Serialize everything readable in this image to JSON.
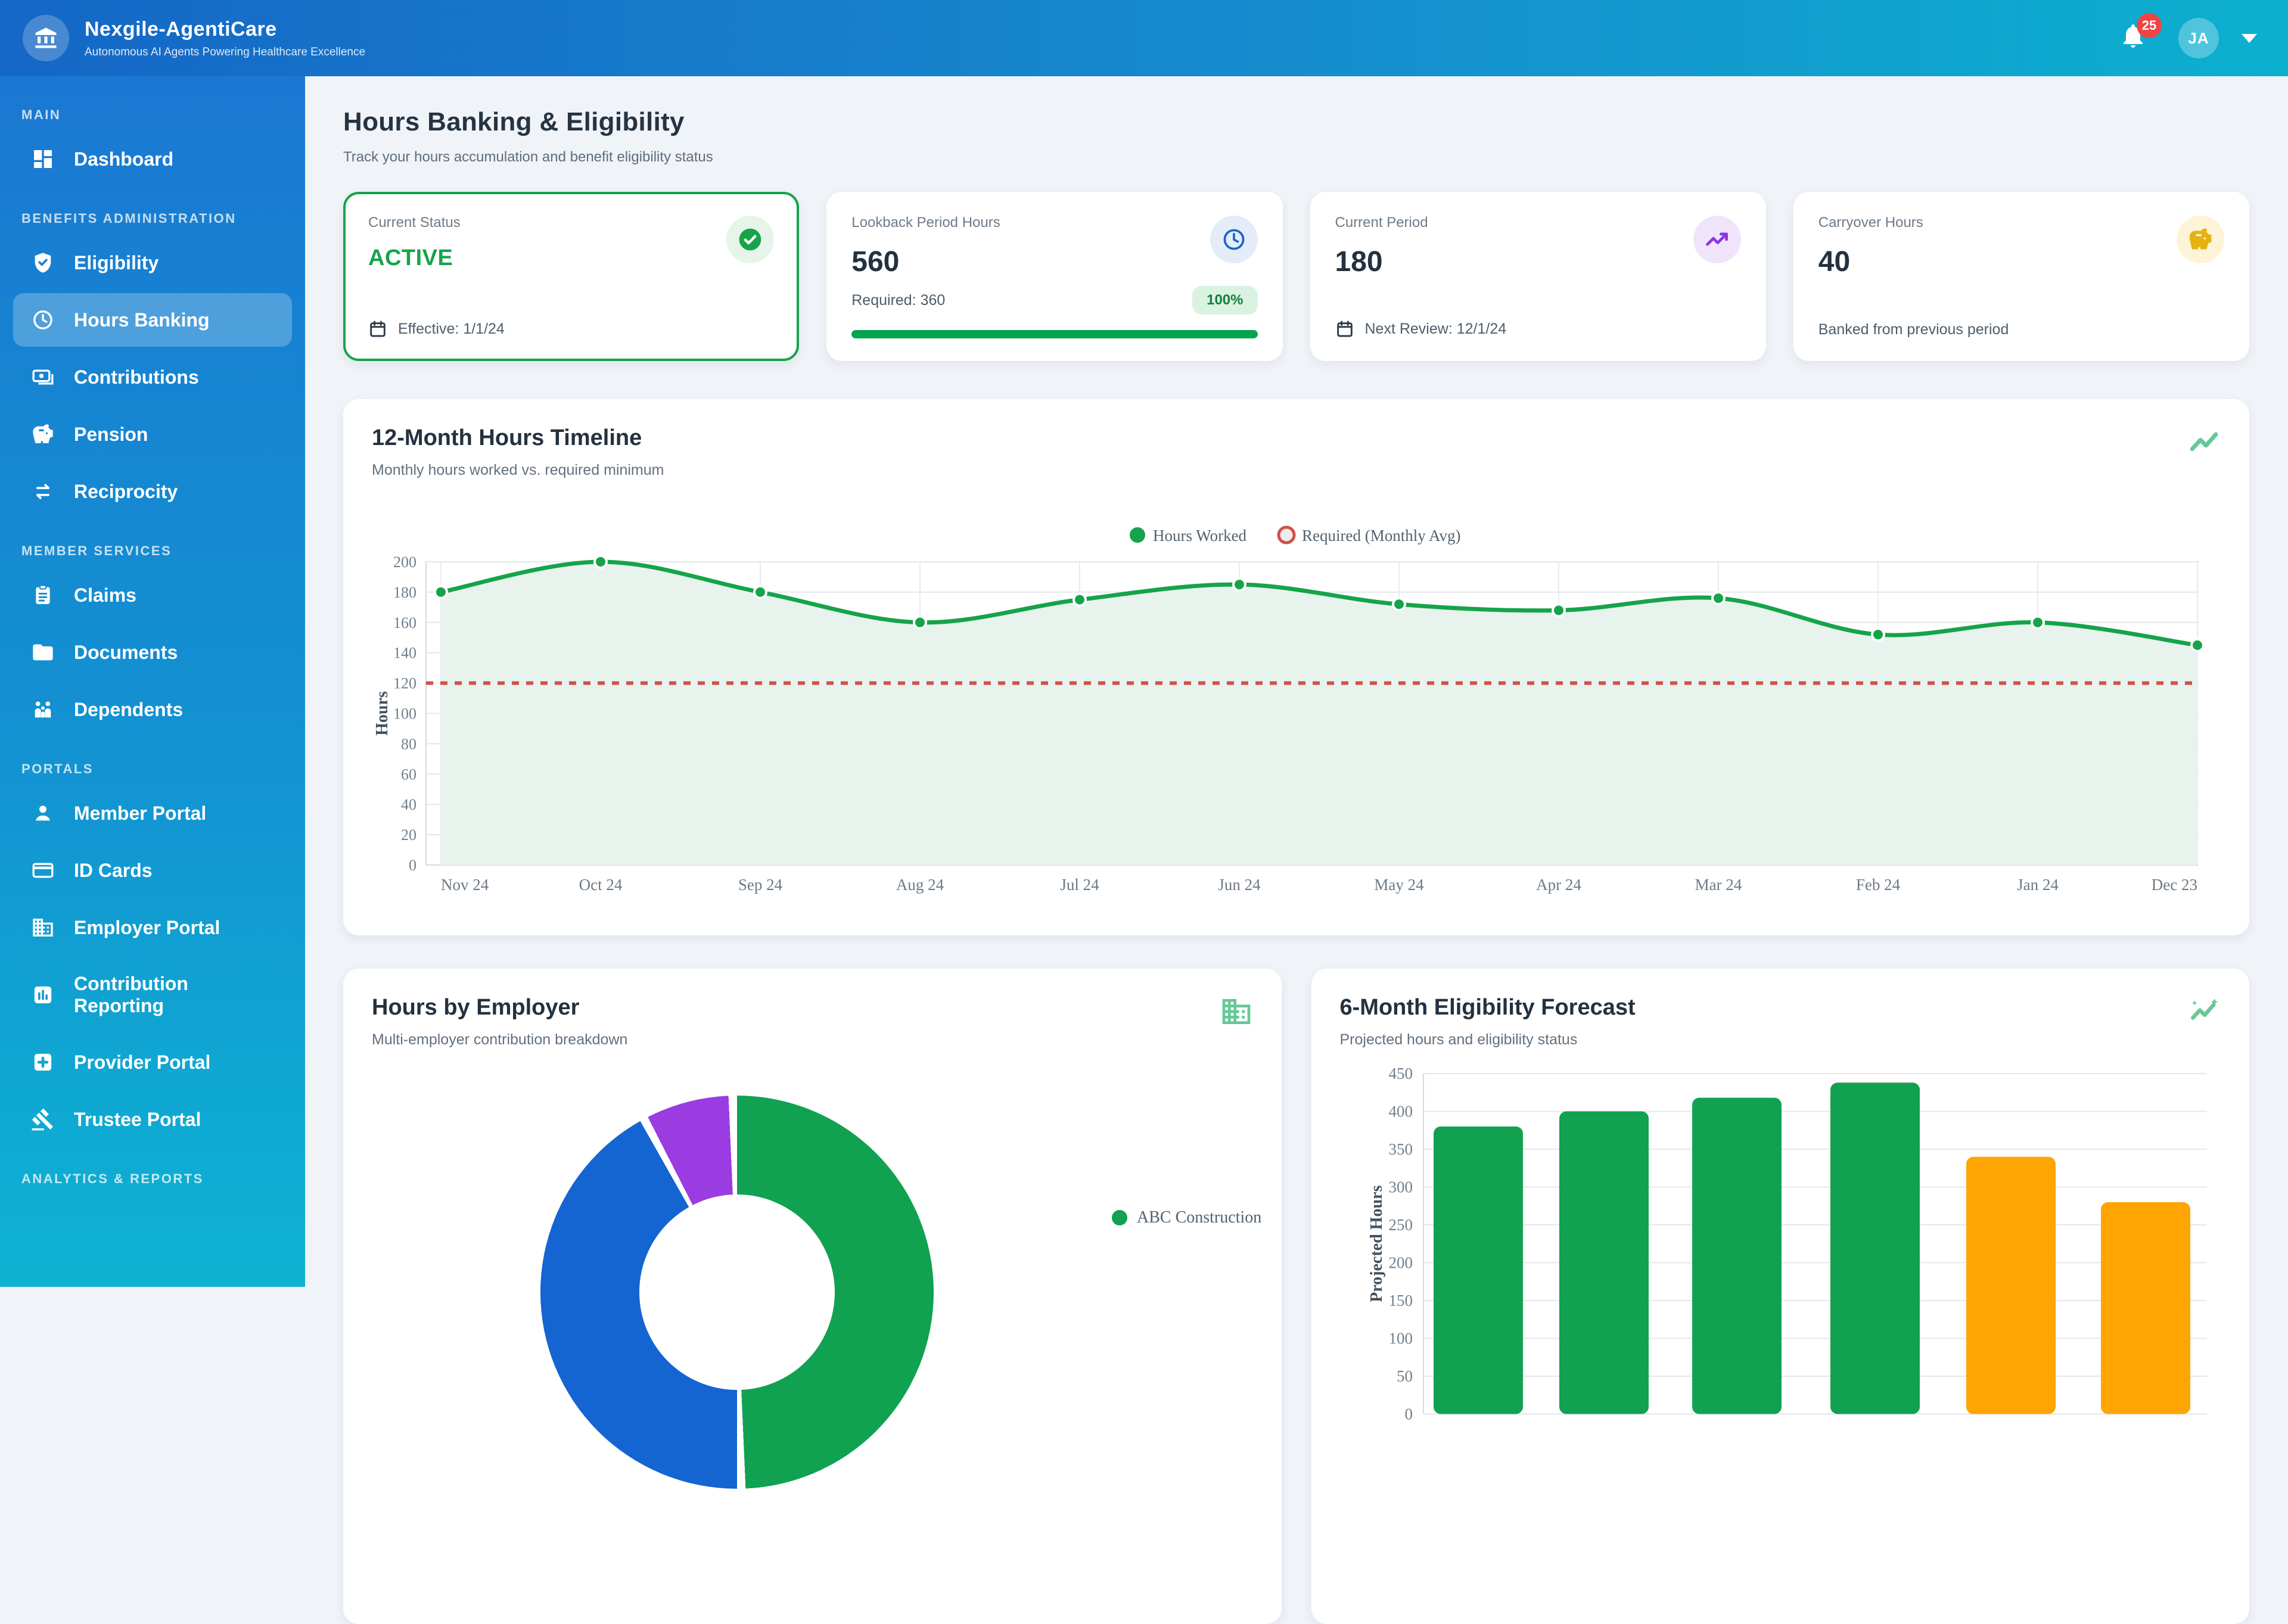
{
  "header": {
    "brand": "Nexgile-AgentiCare",
    "tagline": "Autonomous AI Agents Powering Healthcare Excellence",
    "notification_count": "25",
    "avatar_initials": "JA"
  },
  "sidebar": {
    "sections": [
      {
        "label": "MAIN",
        "items": [
          {
            "label": "Dashboard",
            "icon": "dashboard-icon",
            "active": false
          }
        ]
      },
      {
        "label": "BENEFITS ADMINISTRATION",
        "items": [
          {
            "label": "Eligibility",
            "icon": "shield-check-icon",
            "active": false
          },
          {
            "label": "Hours Banking",
            "icon": "clock-icon",
            "active": true
          },
          {
            "label": "Contributions",
            "icon": "payments-icon",
            "active": false
          },
          {
            "label": "Pension",
            "icon": "piggy-bank-icon",
            "active": false
          },
          {
            "label": "Reciprocity",
            "icon": "swap-arrows-icon",
            "active": false
          }
        ]
      },
      {
        "label": "MEMBER SERVICES",
        "items": [
          {
            "label": "Claims",
            "icon": "clipboard-icon",
            "active": false
          },
          {
            "label": "Documents",
            "icon": "folder-icon",
            "active": false
          },
          {
            "label": "Dependents",
            "icon": "family-icon",
            "active": false
          }
        ]
      },
      {
        "label": "PORTALS",
        "items": [
          {
            "label": "Member Portal",
            "icon": "person-icon",
            "active": false
          },
          {
            "label": "ID Cards",
            "icon": "id-card-icon",
            "active": false
          },
          {
            "label": "Employer Portal",
            "icon": "building-icon",
            "active": false
          },
          {
            "label": "Contribution Reporting",
            "icon": "bar-chart-icon",
            "active": false
          },
          {
            "label": "Provider Portal",
            "icon": "medical-cross-icon",
            "active": false
          },
          {
            "label": "Trustee Portal",
            "icon": "gavel-icon",
            "active": false
          }
        ]
      },
      {
        "label": "ANALYTICS & REPORTS",
        "items": []
      }
    ]
  },
  "page": {
    "title": "Hours Banking & Eligibility",
    "subtitle": "Track your hours accumulation and benefit eligibility status"
  },
  "stats": [
    {
      "label": "Current Status",
      "value": "ACTIVE",
      "footer": "Effective: 1/1/24"
    },
    {
      "label": "Lookback Period Hours",
      "value": "560",
      "footer": "Required: 360",
      "badge": "100%"
    },
    {
      "label": "Current Period",
      "value": "180",
      "footer": "Next Review: 12/1/24"
    },
    {
      "label": "Carryover Hours",
      "value": "40",
      "footer": "Banked from previous period"
    }
  ],
  "chart_data": [
    {
      "id": "timeline",
      "type": "line",
      "title": "12-Month Hours Timeline",
      "subtitle": "Monthly hours worked vs. required minimum",
      "ylabel": "Hours",
      "ylim": [
        0,
        200
      ],
      "ytick_step": 20,
      "grid": true,
      "legend_position": "top-center",
      "categories": [
        "Nov 24",
        "Oct 24",
        "Sep 24",
        "Aug 24",
        "Jul 24",
        "Jun 24",
        "May 24",
        "Apr 24",
        "Mar 24",
        "Feb 24",
        "Jan 24",
        "Dec 23"
      ],
      "series": [
        {
          "name": "Hours Worked",
          "type": "line",
          "values": [
            180,
            200,
            180,
            160,
            175,
            185,
            172,
            168,
            176,
            152,
            160,
            145
          ],
          "color": "#16a34a"
        },
        {
          "name": "Required (Monthly Avg)",
          "type": "dashed-reference",
          "value": 120,
          "color": "#d0514b"
        }
      ]
    },
    {
      "id": "employer",
      "type": "pie",
      "title": "Hours by Employer",
      "subtitle": "Multi-employer contribution breakdown",
      "segments": [
        {
          "label": "ABC Construction",
          "percent": 50,
          "color": "#10a251"
        },
        {
          "label": "",
          "percent": 42.5,
          "color": "#1464d2"
        },
        {
          "label": "",
          "percent": 7.5,
          "color": "#9a3ce2"
        }
      ],
      "visible_legend": [
        "ABC Construction"
      ]
    },
    {
      "id": "forecast",
      "type": "bar",
      "title": "6-Month Eligibility Forecast",
      "subtitle": "Projected hours and eligibility status",
      "ylabel": "Projected Hours",
      "ylim": [
        0,
        450
      ],
      "ytick_step": 50,
      "grid": true,
      "values": [
        380,
        400,
        418,
        438,
        340,
        280
      ],
      "colors": [
        "#12a150",
        "#12a150",
        "#12a150",
        "#12a150",
        "#ffa503",
        "#ffa503"
      ]
    }
  ]
}
